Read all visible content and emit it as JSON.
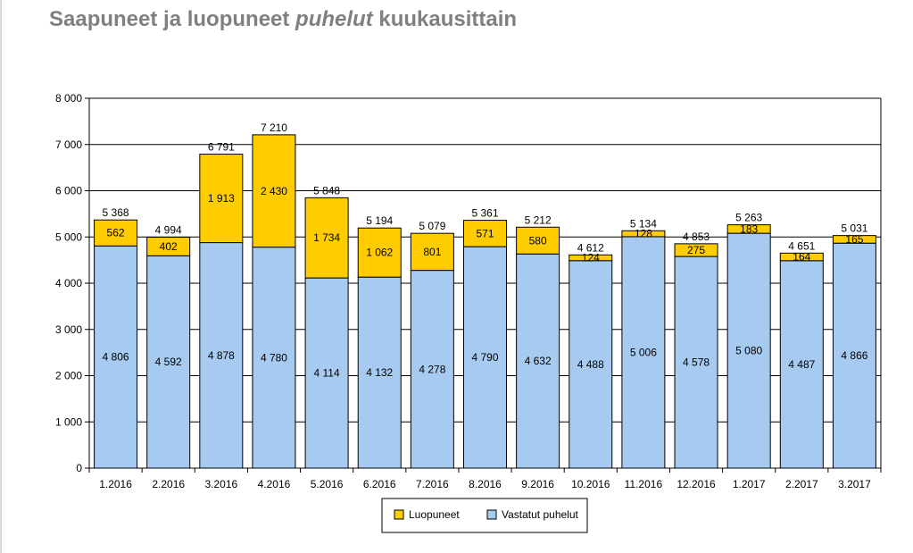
{
  "title": {
    "part1": "Saapuneet ja luopuneet ",
    "part2": "puhelut",
    "part3": " kuukausittain"
  },
  "colors": {
    "luopuneet": "#ffcc00",
    "vastatut": "#a6caf0",
    "grid": "#000000"
  },
  "chart_data": {
    "type": "bar",
    "stacked": true,
    "title": "Saapuneet ja luopuneet puhelut kuukausittain",
    "categories": [
      "1.2016",
      "2.2016",
      "3.2016",
      "4.2016",
      "5.2016",
      "6.2016",
      "7.2016",
      "8.2016",
      "9.2016",
      "10.2016",
      "11.2016",
      "12.2016",
      "1.2017",
      "2.2017",
      "3.2017"
    ],
    "series": [
      {
        "name": "Vastatut puhelut",
        "values": [
          4806,
          4592,
          4878,
          4780,
          4114,
          4132,
          4278,
          4790,
          4632,
          4488,
          5006,
          4578,
          5080,
          4487,
          4866
        ],
        "labels": [
          "4 806",
          "4 592",
          "4 878",
          "4 780",
          "4 114",
          "4 132",
          "4 278",
          "4 790",
          "4 632",
          "4 488",
          "5 006",
          "4 578",
          "5 080",
          "4 487",
          "4 866"
        ]
      },
      {
        "name": "Luopuneet",
        "values": [
          562,
          402,
          1913,
          2430,
          1734,
          1062,
          801,
          571,
          580,
          124,
          128,
          275,
          183,
          164,
          165
        ],
        "labels": [
          "562",
          "402",
          "1 913",
          "2 430",
          "1 734",
          "1 062",
          "801",
          "571",
          "580",
          "124",
          "128",
          "275",
          "183",
          "164",
          "165"
        ]
      }
    ],
    "totals": [
      5368,
      4994,
      6791,
      7210,
      5848,
      5194,
      5079,
      5361,
      5212,
      4612,
      5134,
      4853,
      5263,
      4651,
      5031
    ],
    "total_labels": [
      "5 368",
      "4 994",
      "6 791",
      "7 210",
      "5 848",
      "5 194",
      "5 079",
      "5 361",
      "5 212",
      "4 612",
      "5 134",
      "4 853",
      "5 263",
      "4 651",
      "5 031"
    ],
    "ylim": [
      0,
      8000
    ],
    "yticks": [
      0,
      1000,
      2000,
      3000,
      4000,
      5000,
      6000,
      7000,
      8000
    ],
    "ytick_labels": [
      "0",
      "1 000",
      "2 000",
      "3 000",
      "4 000",
      "5 000",
      "6 000",
      "7 000",
      "8 000"
    ],
    "grid": true,
    "legend": {
      "position": "bottom",
      "entries": [
        "Luopuneet",
        "Vastatut puhelut"
      ]
    }
  }
}
